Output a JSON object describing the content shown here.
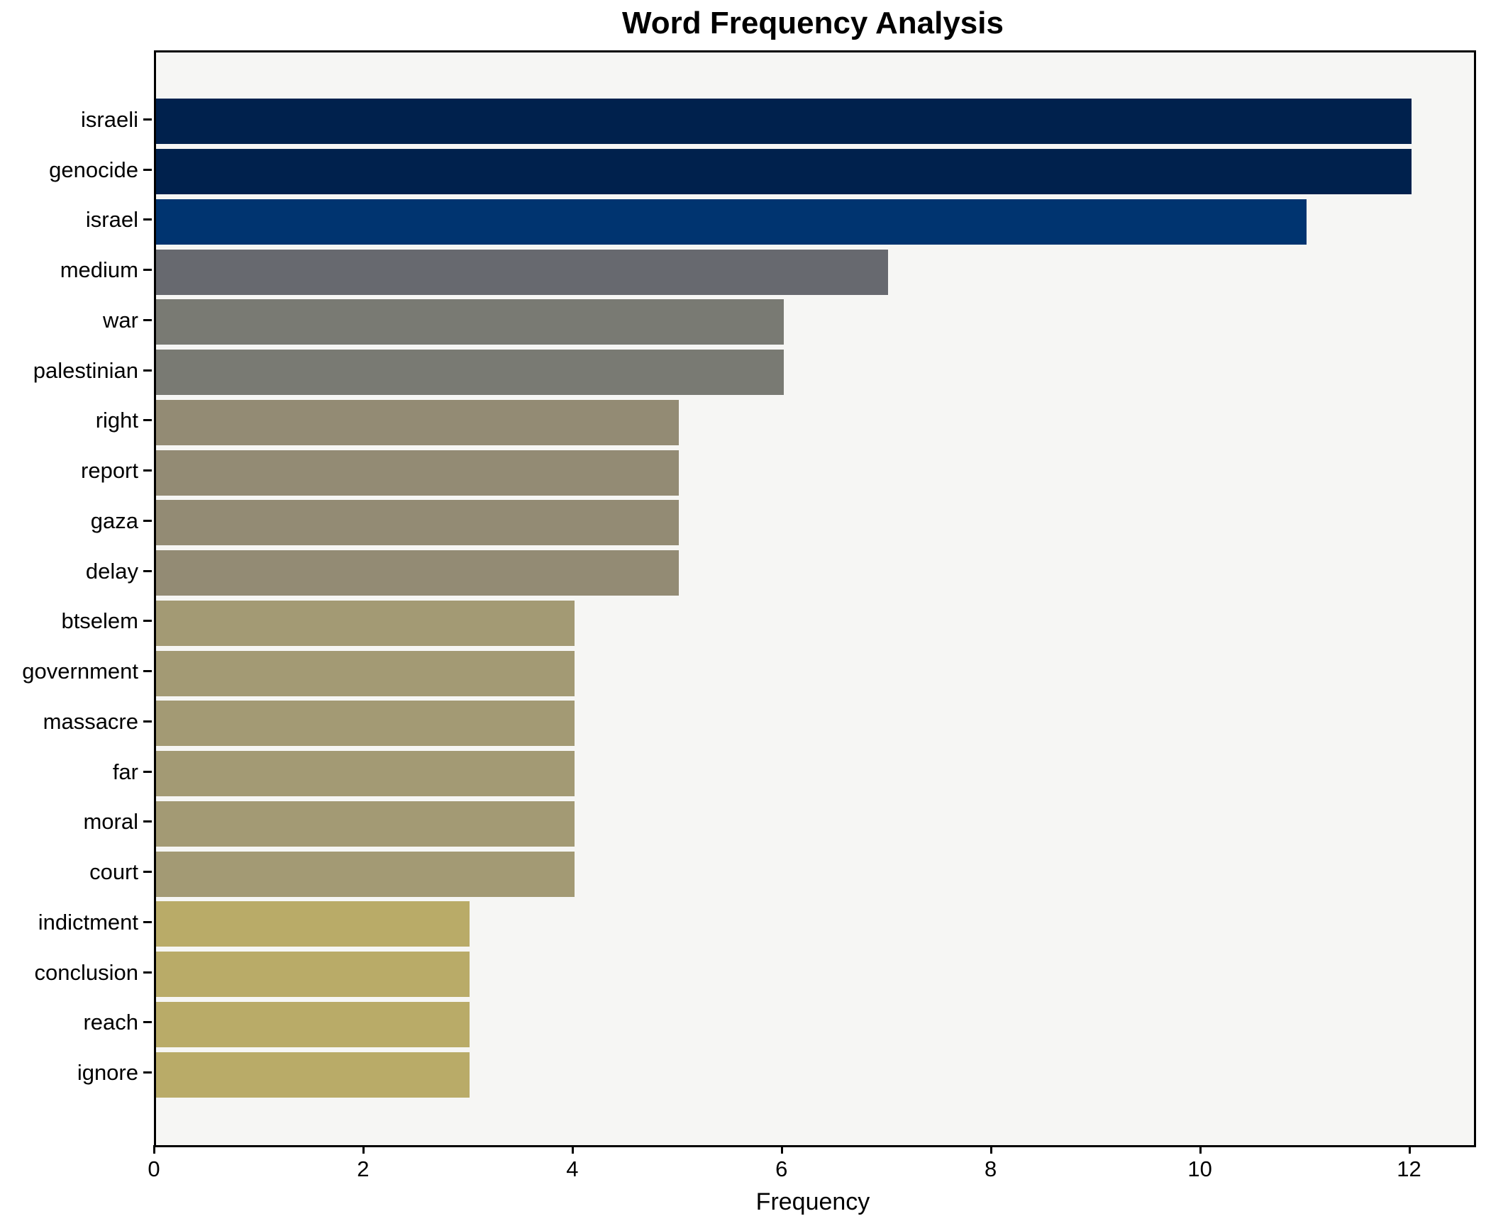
{
  "figure": {
    "title": "Word Frequency Analysis",
    "background_color": "#ffffff"
  },
  "chart_data": {
    "type": "bar",
    "orientation": "horizontal",
    "title": "Word Frequency Analysis",
    "xlabel": "Frequency",
    "ylabel": "",
    "categories": [
      "israeli",
      "genocide",
      "israel",
      "medium",
      "war",
      "palestinian",
      "right",
      "report",
      "gaza",
      "delay",
      "btselem",
      "government",
      "massacre",
      "far",
      "moral",
      "court",
      "indictment",
      "conclusion",
      "reach",
      "ignore"
    ],
    "values": [
      12,
      12,
      11,
      7,
      6,
      6,
      5,
      5,
      5,
      5,
      4,
      4,
      4,
      4,
      4,
      4,
      3,
      3,
      3,
      3
    ],
    "bar_colors": [
      "#00214d",
      "#00214d",
      "#003470",
      "#67696f",
      "#797a73",
      "#797a73",
      "#938b74",
      "#938b74",
      "#938b74",
      "#938b74",
      "#a39a74",
      "#a39a74",
      "#a39a74",
      "#a39a74",
      "#a39a74",
      "#a39a74",
      "#b9ab68",
      "#b9ab68",
      "#b9ab68",
      "#b9ab68"
    ],
    "xticks": [
      0,
      2,
      4,
      6,
      8,
      10,
      12
    ],
    "xlim": [
      0,
      12.6
    ],
    "grid": false,
    "legend": null,
    "plot_background": "#f6f6f4",
    "axis_color": "#000000"
  }
}
